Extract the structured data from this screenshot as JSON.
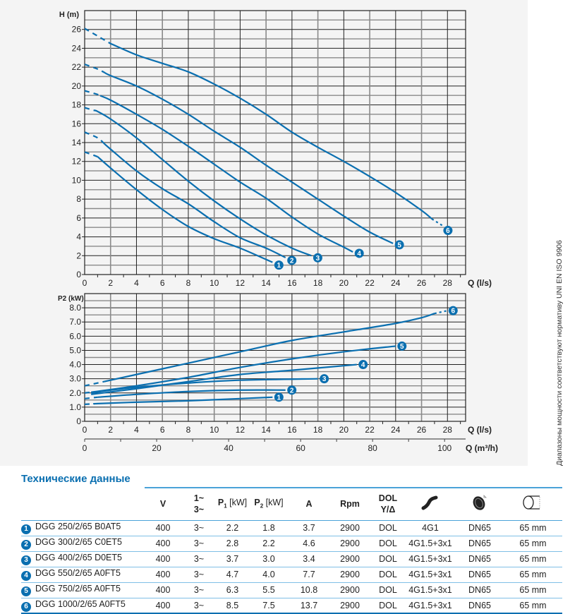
{
  "colors": {
    "curve": "#0a6fb0",
    "grid_major": "#222222",
    "grid_minor": "#8a8a8a",
    "title": "#0a6fb0"
  },
  "chart_data": [
    {
      "type": "line",
      "ylabel": "H (m)",
      "xlabel": "Q (l/s)",
      "xlim": [
        0,
        29.4
      ],
      "ylim": [
        0,
        28
      ],
      "xticks": [
        0,
        2,
        4,
        6,
        8,
        10,
        12,
        14,
        16,
        18,
        20,
        22,
        24,
        26,
        28
      ],
      "yticks": [
        0,
        2,
        4,
        6,
        8,
        10,
        12,
        14,
        16,
        18,
        20,
        22,
        24,
        26
      ],
      "grid": true,
      "series": [
        {
          "label": "1",
          "dashed_until": 1,
          "points": [
            [
              0,
              13
            ],
            [
              1,
              12.5
            ],
            [
              2,
              11.3
            ],
            [
              4,
              9
            ],
            [
              6,
              6.9
            ],
            [
              8,
              5.1
            ],
            [
              10,
              3.8
            ],
            [
              12,
              2.8
            ],
            [
              14,
              1.6
            ],
            [
              14.5,
              1.3
            ]
          ]
        },
        {
          "label": "2",
          "dashed_until": 1.5,
          "points": [
            [
              0,
              15.1
            ],
            [
              1,
              14.5
            ],
            [
              2,
              13.3
            ],
            [
              4,
              11
            ],
            [
              6,
              9.1
            ],
            [
              8,
              7.5
            ],
            [
              10,
              5.6
            ],
            [
              12,
              3.9
            ],
            [
              14,
              2.8
            ],
            [
              15.5,
              1.8
            ]
          ]
        },
        {
          "label": "3",
          "dashed_until": 0.7,
          "points": [
            [
              0,
              17.7
            ],
            [
              1,
              17.3
            ],
            [
              2,
              16.5
            ],
            [
              4,
              14.5
            ],
            [
              6,
              12.2
            ],
            [
              8,
              9.9
            ],
            [
              10,
              7.8
            ],
            [
              12,
              5.9
            ],
            [
              14,
              4.2
            ],
            [
              16,
              2.8
            ],
            [
              17.5,
              2.0
            ]
          ]
        },
        {
          "label": "4",
          "dashed_until": 1.2,
          "points": [
            [
              0,
              19.5
            ],
            [
              1,
              19.1
            ],
            [
              2,
              18.5
            ],
            [
              4,
              17
            ],
            [
              6,
              15.4
            ],
            [
              8,
              13.6
            ],
            [
              10,
              11.7
            ],
            [
              12,
              9.8
            ],
            [
              14,
              8.1
            ],
            [
              16,
              6.1
            ],
            [
              18,
              4.3
            ],
            [
              20,
              2.9
            ],
            [
              20.7,
              2.4
            ]
          ]
        },
        {
          "label": "5",
          "dashed_until": 1.5,
          "points": [
            [
              0,
              22.3
            ],
            [
              1,
              21.8
            ],
            [
              2,
              21.1
            ],
            [
              4,
              20
            ],
            [
              6,
              18.6
            ],
            [
              8,
              17
            ],
            [
              10,
              15.2
            ],
            [
              12,
              13.5
            ],
            [
              14,
              11.6
            ],
            [
              16,
              9.8
            ],
            [
              18,
              8.0
            ],
            [
              20,
              6.2
            ],
            [
              22,
              4.5
            ],
            [
              23.8,
              3.3
            ]
          ]
        },
        {
          "label": "6",
          "dashed_until": 2,
          "dotted_from": 26.8,
          "points": [
            [
              0,
              26.1
            ],
            [
              1,
              25.3
            ],
            [
              2,
              24.5
            ],
            [
              4,
              23.3
            ],
            [
              6,
              22.4
            ],
            [
              8,
              21.5
            ],
            [
              10,
              20.2
            ],
            [
              12,
              18.7
            ],
            [
              14,
              17
            ],
            [
              16,
              15.1
            ],
            [
              18,
              13.5
            ],
            [
              20,
              12
            ],
            [
              22,
              10.4
            ],
            [
              24,
              8.7
            ],
            [
              26,
              6.8
            ],
            [
              26.8,
              5.9
            ],
            [
              27.6,
              5.2
            ]
          ]
        }
      ]
    },
    {
      "type": "line",
      "ylabel": "P2 (kW)",
      "xlabel": "Q (l/s)",
      "x2label": "Q (m³/h)",
      "xlim": [
        0,
        29.4
      ],
      "ylim": [
        0,
        9
      ],
      "xticks": [
        0,
        2,
        4,
        6,
        8,
        10,
        12,
        14,
        16,
        18,
        20,
        22,
        24,
        26,
        28
      ],
      "yticks": [
        "0",
        "1.0",
        "2.0",
        "3.0",
        "4.0",
        "5.0",
        "6.0",
        "7.0",
        "8.0"
      ],
      "x2ticks": [
        0,
        20,
        40,
        60,
        80,
        100
      ],
      "grid": true,
      "series": [
        {
          "label": "1",
          "dashed_until": 0.8,
          "points": [
            [
              0,
              1.2
            ],
            [
              1,
              1.25
            ],
            [
              4,
              1.35
            ],
            [
              8,
              1.45
            ],
            [
              12,
              1.6
            ],
            [
              14.5,
              1.7
            ]
          ]
        },
        {
          "label": "2",
          "dashed_until": 1,
          "points": [
            [
              0,
              1.6
            ],
            [
              1,
              1.7
            ],
            [
              4,
              1.9
            ],
            [
              8,
              2.1
            ],
            [
              12,
              2.2
            ],
            [
              15.5,
              2.2
            ]
          ]
        },
        {
          "label": "3",
          "dashed_until": 0,
          "points": [
            [
              0.5,
              2.0
            ],
            [
              2,
              2.2
            ],
            [
              4,
              2.4
            ],
            [
              8,
              2.7
            ],
            [
              12,
              2.9
            ],
            [
              18,
              3.0
            ]
          ]
        },
        {
          "label": "4",
          "dashed_until": 0,
          "points": [
            [
              0.5,
              1.9
            ],
            [
              4,
              2.3
            ],
            [
              8,
              2.8
            ],
            [
              12,
              3.3
            ],
            [
              16,
              3.6
            ],
            [
              21,
              4.0
            ]
          ]
        },
        {
          "label": "5",
          "dashed_until": 0.5,
          "points": [
            [
              0,
              2.0
            ],
            [
              0.5,
              2.05
            ],
            [
              4,
              2.5
            ],
            [
              8,
              3.1
            ],
            [
              12,
              3.8
            ],
            [
              16,
              4.4
            ],
            [
              20,
              4.9
            ],
            [
              24,
              5.3
            ]
          ]
        },
        {
          "label": "6",
          "dashed_until": 1.5,
          "dotted_from": 27,
          "points": [
            [
              0,
              2.5
            ],
            [
              1.5,
              2.8
            ],
            [
              4,
              3.3
            ],
            [
              8,
              4.1
            ],
            [
              12,
              4.9
            ],
            [
              16,
              5.7
            ],
            [
              20,
              6.3
            ],
            [
              24,
              6.9
            ],
            [
              26,
              7.3
            ],
            [
              27,
              7.6
            ],
            [
              28,
              7.8
            ]
          ]
        }
      ]
    }
  ],
  "side_note": "Диапазоны мощности соответствуют нормативу UNI EN ISO 9906",
  "table": {
    "title": "Технические данные",
    "headers": {
      "v": "V",
      "phase_1": "1~",
      "phase_3": "3~",
      "p1": "P",
      "p1_sub": "1",
      "p1_unit": " [kW]",
      "p2": "P",
      "p2_sub": "2",
      "p2_unit": " [kW]",
      "a": "A",
      "rpm": "Rpm",
      "dol_1": "DOL",
      "dol_2": "Y/Δ",
      "cable_icon": "cable-icon",
      "outlet_icon": "impeller-icon",
      "diameter_icon": "diameter-icon"
    },
    "rows": [
      {
        "n": "1",
        "model": "DGG 250/2/65 B0AT5",
        "v": "400",
        "phase": "3~",
        "p1": "2.2",
        "p2": "1.8",
        "a": "3.7",
        "rpm": "2900",
        "start": "DOL",
        "cable": "4G1",
        "outlet": "DN65",
        "passage": "65 mm"
      },
      {
        "n": "2",
        "model": "DGG 300/2/65 C0ET5",
        "v": "400",
        "phase": "3~",
        "p1": "2.8",
        "p2": "2.2",
        "a": "4.6",
        "rpm": "2900",
        "start": "DOL",
        "cable": "4G1.5+3x1",
        "outlet": "DN65",
        "passage": "65 mm"
      },
      {
        "n": "3",
        "model": "DGG 400/2/65 D0ET5",
        "v": "400",
        "phase": "3~",
        "p1": "3.7",
        "p2": "3.0",
        "a": "3.4",
        "rpm": "2900",
        "start": "DOL",
        "cable": "4G1.5+3x1",
        "outlet": "DN65",
        "passage": "65 mm"
      },
      {
        "n": "4",
        "model": "DGG 550/2/65 A0FT5",
        "v": "400",
        "phase": "3~",
        "p1": "4.7",
        "p2": "4.0",
        "a": "7.7",
        "rpm": "2900",
        "start": "DOL",
        "cable": "4G1.5+3x1",
        "outlet": "DN65",
        "passage": "65 mm"
      },
      {
        "n": "5",
        "model": "DGG 750/2/65 A0FT5",
        "v": "400",
        "phase": "3~",
        "p1": "6.3",
        "p2": "5.5",
        "a": "10.8",
        "rpm": "2900",
        "start": "DOL",
        "cable": "4G1.5+3x1",
        "outlet": "DN65",
        "passage": "65 mm"
      },
      {
        "n": "6",
        "model": "DGG 1000/2/65 A0FT5",
        "v": "400",
        "phase": "3~",
        "p1": "8.5",
        "p2": "7.5",
        "a": "13.7",
        "rpm": "2900",
        "start": "DOL",
        "cable": "4G1.5+3x1",
        "outlet": "DN65",
        "passage": "65 mm"
      }
    ]
  }
}
